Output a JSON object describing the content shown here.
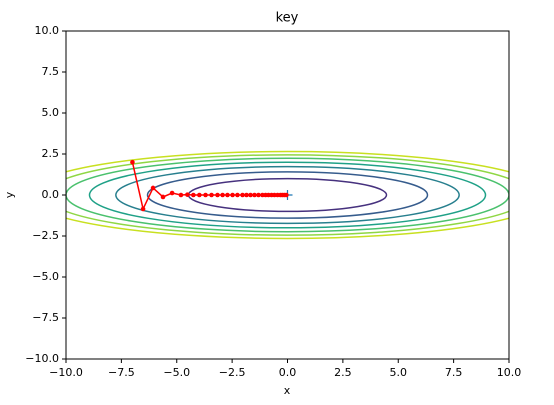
{
  "chart_data": {
    "type": "contour-path",
    "title": "key",
    "x_label": "x",
    "y_label": "y",
    "xlim": [
      -10,
      10
    ],
    "ylim": [
      -10,
      10
    ],
    "xticks": [
      {
        "value": -10,
        "label": "−10.0"
      },
      {
        "value": -7.5,
        "label": "−7.5"
      },
      {
        "value": -5,
        "label": "−5.0"
      },
      {
        "value": -2.5,
        "label": "−2.5"
      },
      {
        "value": 0,
        "label": "0.0"
      },
      {
        "value": 2.5,
        "label": "2.5"
      },
      {
        "value": 5,
        "label": "5.0"
      },
      {
        "value": 7.5,
        "label": "7.5"
      },
      {
        "value": 10,
        "label": "10.0"
      }
    ],
    "yticks": [
      {
        "value": -10,
        "label": "−10.0"
      },
      {
        "value": -7.5,
        "label": "−7.5"
      },
      {
        "value": -5,
        "label": "−5.0"
      },
      {
        "value": -2.5,
        "label": "−2.5"
      },
      {
        "value": 0,
        "label": "0.0"
      },
      {
        "value": 2.5,
        "label": "2.5"
      },
      {
        "value": 5,
        "label": "5.0"
      },
      {
        "value": 7.5,
        "label": "7.5"
      },
      {
        "value": 10,
        "label": "10.0"
      }
    ],
    "contours": [
      {
        "color": "#46317e",
        "x_radius": 4.47,
        "y_radius": 1.0
      },
      {
        "color": "#365c8d",
        "x_radius": 6.32,
        "y_radius": 1.41
      },
      {
        "color": "#277f8e",
        "x_radius": 7.75,
        "y_radius": 1.73
      },
      {
        "color": "#1fa187",
        "x_radius": 8.94,
        "y_radius": 2.0
      },
      {
        "color": "#4ac16d",
        "x_radius": 10.0,
        "y_radius": 2.24
      },
      {
        "color": "#8fd744",
        "x_radius": 10.95,
        "y_radius": 2.45
      },
      {
        "color": "#c8e020",
        "x_radius": 11.83,
        "y_radius": 2.65
      }
    ],
    "series": [
      {
        "color": "#ff0000",
        "x": [
          -7,
          -6.52,
          -6.07,
          -5.62,
          -5.21,
          -4.81,
          -4.52,
          -4.25,
          -3.98,
          -3.7,
          -3.43,
          -3.16,
          -2.93,
          -2.71,
          -2.48,
          -2.26,
          -2.03,
          -1.85,
          -1.67,
          -1.49,
          -1.31,
          -1.13,
          -0.99,
          -0.86,
          -0.72,
          -0.59,
          -0.45,
          -0.32,
          -0.23,
          -0.14,
          -0.05
        ],
        "values": [
          2,
          -0.85,
          0.43,
          -0.12,
          0.12,
          0,
          0.02,
          0,
          0,
          0,
          0,
          0,
          0,
          0,
          0,
          0,
          0,
          0,
          0,
          0,
          0,
          0,
          0,
          0,
          0,
          0,
          0,
          0,
          0,
          0,
          0
        ]
      }
    ],
    "optimum": {
      "x": 0,
      "y": 0,
      "color": "#1f77b4"
    }
  }
}
